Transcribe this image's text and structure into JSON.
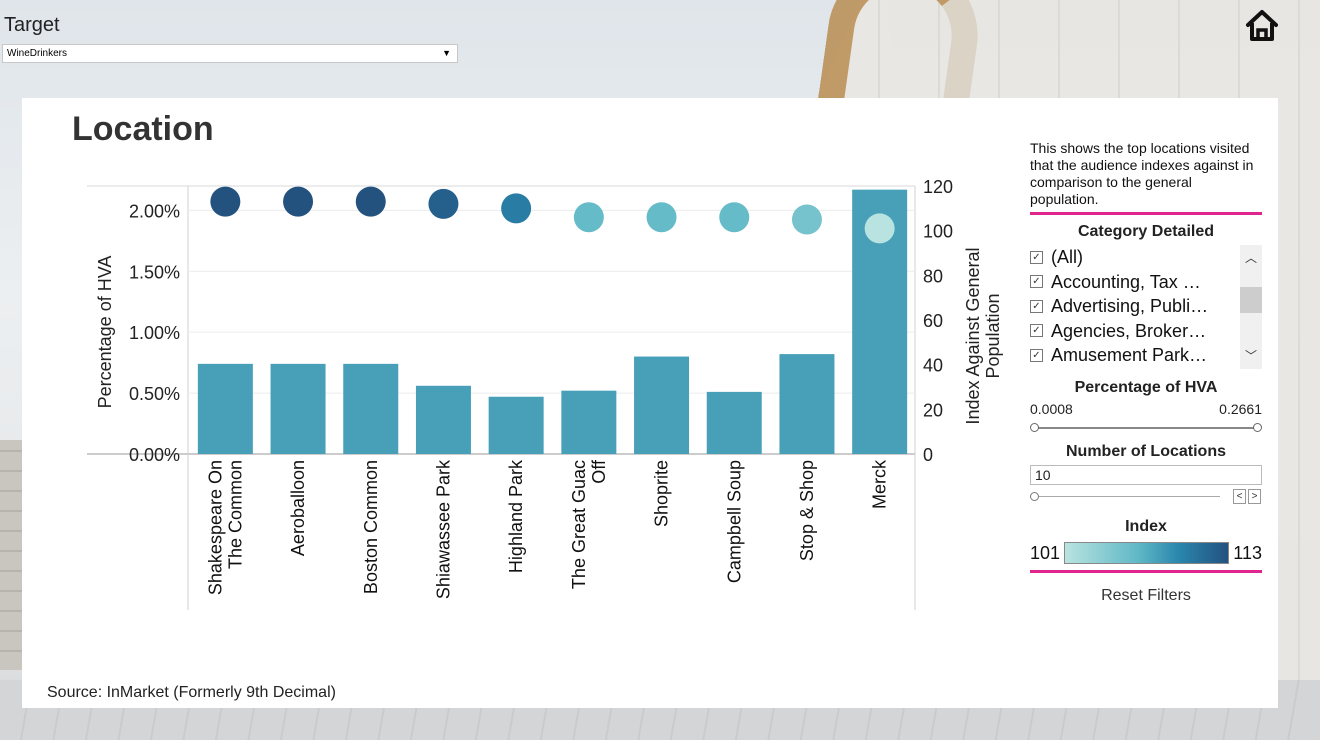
{
  "colors": {
    "accent_pink": "#e0268e",
    "bar": "#48a0b8",
    "dot_low": "#b9e3e0",
    "dot_high": "#23527f"
  },
  "header": {
    "target_label": "Target",
    "target_value": "WineDrinkers",
    "home_icon": "home-icon"
  },
  "card": {
    "title": "Location",
    "source": "Source: InMarket (Formerly 9th Decimal)"
  },
  "side": {
    "description": "This shows the top locations visited that the audience indexes against in comparison to the general population.",
    "category_title": "Category Detailed",
    "categories": [
      {
        "label": "(All)",
        "checked": true
      },
      {
        "label": "Accounting, Tax …",
        "checked": true
      },
      {
        "label": "Advertising, Publi…",
        "checked": true
      },
      {
        "label": "Agencies, Broker…",
        "checked": true
      },
      {
        "label": "Amusement Park…",
        "checked": true
      }
    ],
    "hva_title": "Percentage of HVA",
    "hva_min": "0.0008",
    "hva_max": "0.2661",
    "locations_title": "Number of Locations",
    "locations_value": "10",
    "index_title": "Index",
    "index_min": "101",
    "index_max": "113",
    "reset_label": "Reset Filters"
  },
  "chart_data": {
    "type": "bar",
    "categories": [
      "Shakespeare On The Common",
      "Aeroballoon",
      "Boston Common",
      "Shiawassee Park",
      "Highland Park",
      "The Great Guac Off",
      "Shoprite",
      "Campbell Soup",
      "Stop & Shop",
      "Merck"
    ],
    "category_lines": [
      [
        "Shakespeare On",
        "The Common"
      ],
      [
        "Aeroballoon"
      ],
      [
        "Boston Common"
      ],
      [
        "Shiawassee Park"
      ],
      [
        "Highland Park"
      ],
      [
        "The Great Guac",
        "Off"
      ],
      [
        "Shoprite"
      ],
      [
        "Campbell Soup"
      ],
      [
        "Stop & Shop"
      ],
      [
        "Merck"
      ]
    ],
    "series": [
      {
        "name": "Percentage of HVA",
        "values": [
          0.74,
          0.74,
          0.74,
          0.56,
          0.47,
          0.52,
          0.8,
          0.51,
          0.82,
          2.17
        ]
      },
      {
        "name": "Index Against General Population",
        "values": [
          113,
          113,
          113,
          112,
          110,
          106,
          106,
          106,
          105,
          101
        ]
      }
    ],
    "ylabel": "Percentage of HVA",
    "ylabel_right": "Index Against General Population",
    "ylim": [
      0,
      2.2
    ],
    "ylim_right": [
      0,
      120
    ],
    "yticks": [
      "0.00%",
      "0.50%",
      "1.00%",
      "1.50%",
      "2.00%"
    ],
    "yticks_right": [
      "0",
      "20",
      "40",
      "60",
      "80",
      "100",
      "120"
    ],
    "grid": true
  }
}
